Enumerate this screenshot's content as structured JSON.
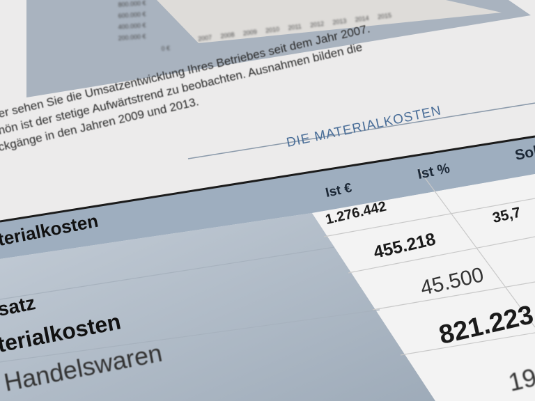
{
  "chart_preview": {
    "y_tick_labels": [
      "800.000 €",
      "600.000 €",
      "400.000 €",
      "200.000 €",
      "0 €"
    ],
    "x_tick_labels": [
      "2007",
      "2008",
      "2009",
      "2010",
      "2011",
      "2012",
      "2013",
      "2014",
      "2015"
    ]
  },
  "paragraph": {
    "line1": "er sehen Sie die Umsatzentwicklung Ihres Betriebes seit dem Jahr 2007.",
    "line2": "hön ist der stetige Aufwärtstrend zu beobachten. Ausnahmen bilden die",
    "line3": "ckgänge in den Jahren 2009 und 2013."
  },
  "section": {
    "title": "DIE MATERIALKOSTEN"
  },
  "table": {
    "headers": [
      "Ist €",
      "Ist %",
      "Sol"
    ],
    "rows": [
      {
        "label": "terialkosten",
        "ist_eur": "1.276.442",
        "ist_pct": "35,7"
      },
      {
        "label": "satz",
        "ist_eur": "455.218"
      },
      {
        "label": "terialkosten",
        "ist_eur": "45.500"
      },
      {
        "label": "Handelswaren",
        "ist_eur": "821.223"
      },
      {
        "label": "",
        "ist_eur": "19"
      }
    ]
  },
  "colors": {
    "header_band": "#9eaebf",
    "label_column": "#b7c2ce",
    "heading_blue": "#4a6e98"
  }
}
